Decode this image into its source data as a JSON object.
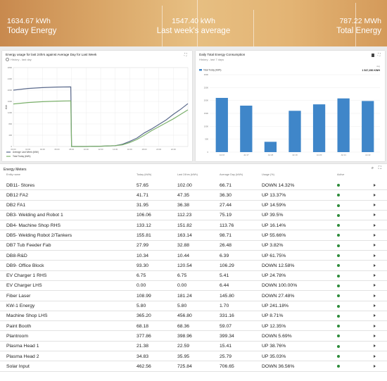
{
  "banner": {
    "today": {
      "value": "1634.67 kWh",
      "label": "Today Energy"
    },
    "last_week": {
      "value": "1547.40 kWh",
      "label": "Last week's average"
    },
    "total": {
      "value": "787.22 MWh",
      "label": "Total Energy"
    }
  },
  "line_card": {
    "title": "Energy usage for last 24hrs against Average Day for Last Week",
    "subtitle": "History - last day",
    "y_axis_label": "kWh",
    "legend": [
      "Average Last Week (kWh)",
      "Total Today (kWh)"
    ]
  },
  "bar_card": {
    "title": "Daily Total Energy Consumption",
    "subtitle": "History - last 7 days",
    "legend": "Total Today (kWh)",
    "right_label": "Avg",
    "right_value": "1 547,256 KWH"
  },
  "chart_data": [
    {
      "type": "line",
      "title": "Energy usage for last 24hrs against Average Day for Last Week",
      "ylabel": "kWh",
      "ylim": [
        0,
        2800
      ],
      "y_ticks": [
        0,
        400,
        800,
        1200,
        1600,
        2000,
        2400,
        2800
      ],
      "x_ticks": [
        "00:00",
        "02:00",
        "04:00",
        "06:00",
        "08:00",
        "10:00",
        "12:00",
        "14:00",
        "16:00",
        "18:00",
        "20:00",
        "22:00"
      ],
      "xlim": [
        0,
        24
      ],
      "legend_position": "bottom-left",
      "series": [
        {
          "name": "Average Last Week (kWh)",
          "color": "#5b6a8c",
          "x": [
            0,
            2,
            4,
            6,
            7.9,
            8,
            10,
            12,
            14,
            15,
            16,
            17,
            18,
            19,
            20,
            21,
            22,
            23,
            24
          ],
          "y": [
            2000,
            2060,
            2090,
            2110,
            2115,
            0,
            0,
            10,
            30,
            80,
            180,
            300,
            480,
            620,
            780,
            940,
            1140,
            1320,
            1520
          ]
        },
        {
          "name": "Total Today (kWh)",
          "color": "#7bb06b",
          "x": [
            0,
            2,
            4,
            6,
            7.9,
            8,
            10,
            12,
            14,
            15,
            16,
            17,
            18,
            19,
            20,
            21,
            22,
            23,
            24
          ],
          "y": [
            1510,
            1560,
            1590,
            1610,
            1620,
            0,
            0,
            10,
            30,
            60,
            140,
            250,
            400,
            560,
            700,
            840,
            980,
            1140,
            1300
          ]
        }
      ]
    },
    {
      "type": "bar",
      "title": "Daily Total Energy Consumption",
      "categories": [
        "Jul 16",
        "Jul 17",
        "Jul 18",
        "Jul 19",
        "Jul 20",
        "Jul 21",
        "Jul 22"
      ],
      "values": [
        2100,
        1800,
        400,
        1600,
        1850,
        2080,
        1980
      ],
      "ylim": [
        0,
        3000
      ],
      "y_ticks": [
        0,
        500,
        1000,
        1500,
        2000,
        2500,
        3000
      ],
      "color": "#3f86c9"
    }
  ],
  "table": {
    "title": "Energy Meters",
    "headers": [
      "Entity name",
      "Today (kWh)",
      "Last 24hrs (kWh)",
      "Average Day (kWh)",
      "Usage (%)",
      "Active"
    ],
    "rows": [
      [
        "DB11- Stores",
        "57.65",
        "102.00",
        "66.71",
        "DOWN 14.32%"
      ],
      [
        "DB12 FA2",
        "41.71",
        "47.35",
        "36.30",
        "UP 13.37%"
      ],
      [
        "DB2 FA1",
        "31.95",
        "36.38",
        "27.44",
        "UP 14.59%"
      ],
      [
        "DB3- Welding and Robot 1",
        "106.06",
        "112.23",
        "75.19",
        "UP 39.5%"
      ],
      [
        "DB4- Machine Shop RHS",
        "133.12",
        "151.82",
        "113.76",
        "UP 16.14%"
      ],
      [
        "DB5- Welding Robot 2/Tankers",
        "155.81",
        "163.14",
        "98.71",
        "UP 55.66%"
      ],
      [
        "DB7 Tub Feeder Fab",
        "27.99",
        "32.88",
        "26.48",
        "UP 3.82%"
      ],
      [
        "DB8-R&D",
        "10.34",
        "10.44",
        "6.39",
        "UP 61.75%"
      ],
      [
        "DB9- Office Block",
        "93.30",
        "120.54",
        "106.29",
        "DOWN 12.58%"
      ],
      [
        "EV Charger 1 RHS",
        "6.75",
        "6.75",
        "5.41",
        "UP 24.78%"
      ],
      [
        "EV Charger LHS",
        "0.00",
        "0.00",
        "6.44",
        "DOWN 100.00%"
      ],
      [
        "Fiber Laser",
        "108.99",
        "181.24",
        "145.80",
        "DOWN 27.48%"
      ],
      [
        "KW-1 Energy",
        "5.80",
        "5.80",
        "1.70",
        "UP 241.18%"
      ],
      [
        "Machine Shop LHS",
        "365.20",
        "456.80",
        "331.16",
        "UP 8.71%"
      ],
      [
        "Paint Booth",
        "68.18",
        "68.36",
        "59.07",
        "UP 12.35%"
      ],
      [
        "Plantroom",
        "377.86",
        "398.96",
        "399.34",
        "DOWN 5.69%"
      ],
      [
        "Plasma Head 1",
        "21.38",
        "22.59",
        "15.41",
        "UP 38.76%"
      ],
      [
        "Plasma Head 2",
        "34.83",
        "35.95",
        "25.79",
        "UP 35.03%"
      ],
      [
        "Solar Input",
        "462.56",
        "725.84",
        "706.65",
        "DOWN 36.56%"
      ]
    ]
  }
}
